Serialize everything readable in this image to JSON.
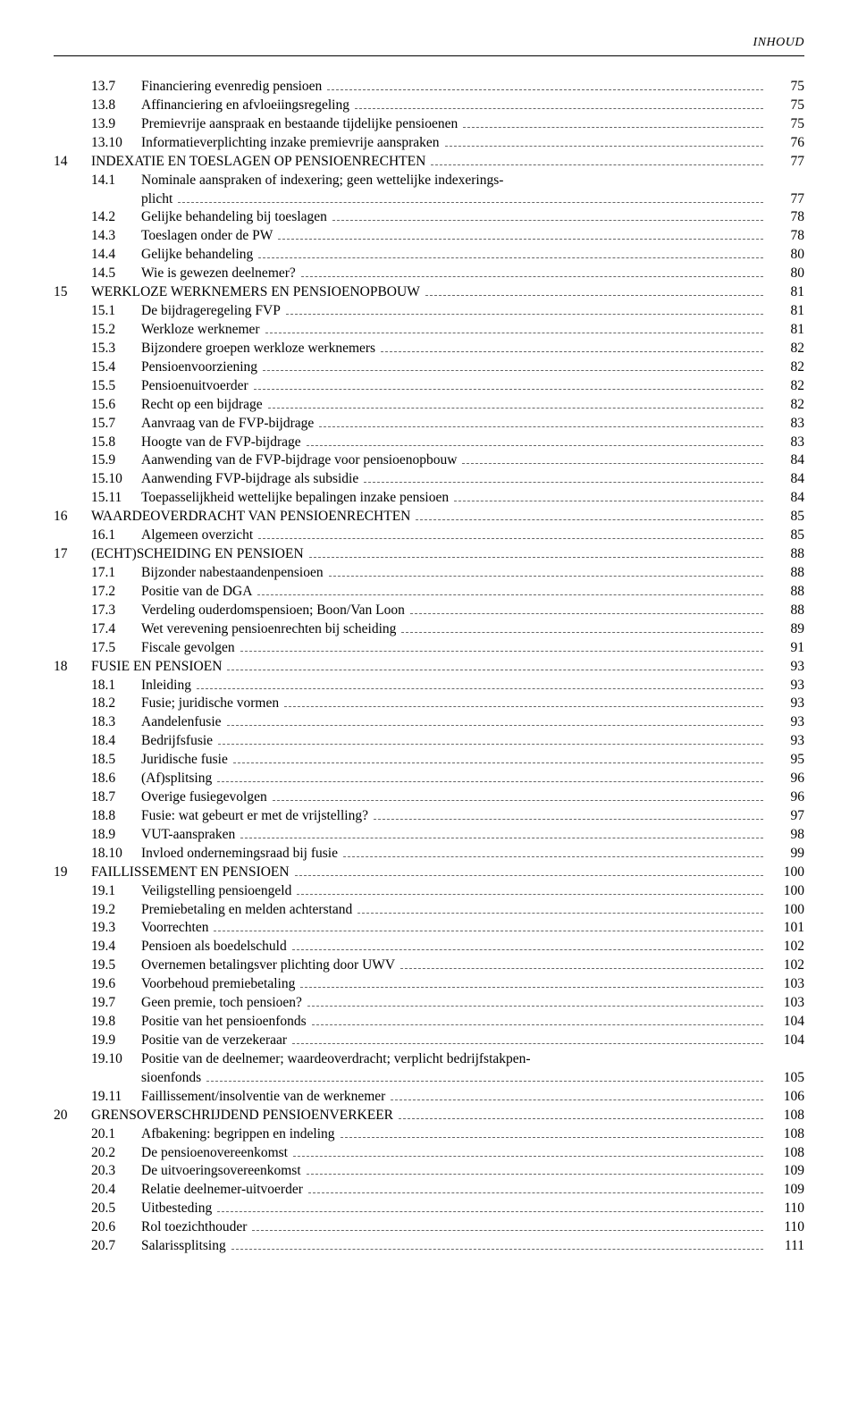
{
  "header": {
    "label": "INHOUD"
  },
  "toc": [
    {
      "type": "section",
      "chap": "",
      "sec": "13.7",
      "title": "Financiering evenredig pensioen",
      "page": "75"
    },
    {
      "type": "section",
      "chap": "",
      "sec": "13.8",
      "title": "Affinanciering en afvloeiingsregeling",
      "page": "75"
    },
    {
      "type": "section",
      "chap": "",
      "sec": "13.9",
      "title": "Premievrije aanspraak en bestaande tijdelijke pensioenen",
      "page": "75"
    },
    {
      "type": "section",
      "chap": "",
      "sec": "13.10",
      "title": "Informatieverplichting inzake premievrije aanspraken",
      "page": "76"
    },
    {
      "type": "chapter",
      "chap": "14",
      "sec": "",
      "title": "INDEXATIE EN TOESLAGEN OP PENSIOENRECHTEN",
      "page": "77"
    },
    {
      "type": "section-wrap",
      "chap": "",
      "sec": "14.1",
      "title": "Nominale aanspraken of indexering; geen wettelijke indexerings-",
      "cont": "plicht",
      "page": "77"
    },
    {
      "type": "section",
      "chap": "",
      "sec": "14.2",
      "title": "Gelijke behandeling bij toeslagen",
      "page": "78"
    },
    {
      "type": "section",
      "chap": "",
      "sec": "14.3",
      "title": "Toeslagen onder de PW",
      "page": "78"
    },
    {
      "type": "section",
      "chap": "",
      "sec": "14.4",
      "title": "Gelijke behandeling",
      "page": "80"
    },
    {
      "type": "section",
      "chap": "",
      "sec": "14.5",
      "title": "Wie is gewezen deelnemer?",
      "page": "80"
    },
    {
      "type": "chapter",
      "chap": "15",
      "sec": "",
      "title": "WERKLOZE WERKNEMERS EN PENSIOENOPBOUW",
      "page": "81"
    },
    {
      "type": "section",
      "chap": "",
      "sec": "15.1",
      "title": "De bijdrageregeling FVP",
      "page": "81"
    },
    {
      "type": "section",
      "chap": "",
      "sec": "15.2",
      "title": "Werkloze werknemer",
      "page": "81"
    },
    {
      "type": "section",
      "chap": "",
      "sec": "15.3",
      "title": "Bijzondere groepen werkloze werknemers",
      "page": "82"
    },
    {
      "type": "section",
      "chap": "",
      "sec": "15.4",
      "title": "Pensioenvoorziening",
      "page": "82"
    },
    {
      "type": "section",
      "chap": "",
      "sec": "15.5",
      "title": "Pensioenuitvoerder",
      "page": "82"
    },
    {
      "type": "section",
      "chap": "",
      "sec": "15.6",
      "title": "Recht op een bijdrage",
      "page": "82"
    },
    {
      "type": "section",
      "chap": "",
      "sec": "15.7",
      "title": "Aanvraag van de FVP-bijdrage",
      "page": "83"
    },
    {
      "type": "section",
      "chap": "",
      "sec": "15.8",
      "title": "Hoogte van de FVP-bijdrage",
      "page": "83"
    },
    {
      "type": "section",
      "chap": "",
      "sec": "15.9",
      "title": "Aanwending van de FVP-bijdrage voor pensioenopbouw",
      "page": "84"
    },
    {
      "type": "section",
      "chap": "",
      "sec": "15.10",
      "title": "Aanwending FVP-bijdrage als subsidie",
      "page": "84"
    },
    {
      "type": "section",
      "chap": "",
      "sec": "15.11",
      "title": "Toepasselijkheid wettelijke bepalingen inzake pensioen",
      "page": "84"
    },
    {
      "type": "chapter",
      "chap": "16",
      "sec": "",
      "title": "WAARDEOVERDRACHT VAN PENSIOENRECHTEN",
      "page": "85"
    },
    {
      "type": "section",
      "chap": "",
      "sec": "16.1",
      "title": "Algemeen overzicht",
      "page": "85"
    },
    {
      "type": "chapter",
      "chap": "17",
      "sec": "",
      "title": "(ECHT)SCHEIDING EN PENSIOEN",
      "page": "88"
    },
    {
      "type": "section",
      "chap": "",
      "sec": "17.1",
      "title": "Bijzonder nabestaandenpensioen",
      "page": "88"
    },
    {
      "type": "section",
      "chap": "",
      "sec": "17.2",
      "title": "Positie van de DGA",
      "page": "88"
    },
    {
      "type": "section",
      "chap": "",
      "sec": "17.3",
      "title": "Verdeling ouderdomspensioen; Boon/Van Loon",
      "page": "88"
    },
    {
      "type": "section",
      "chap": "",
      "sec": "17.4",
      "title": "Wet verevening pensioenrechten bij scheiding",
      "page": "89"
    },
    {
      "type": "section",
      "chap": "",
      "sec": "17.5",
      "title": "Fiscale gevolgen",
      "page": "91"
    },
    {
      "type": "chapter",
      "chap": "18",
      "sec": "",
      "title": "FUSIE EN PENSIOEN",
      "page": "93"
    },
    {
      "type": "section",
      "chap": "",
      "sec": "18.1",
      "title": "Inleiding",
      "page": "93"
    },
    {
      "type": "section",
      "chap": "",
      "sec": "18.2",
      "title": "Fusie; juridische vormen",
      "page": "93"
    },
    {
      "type": "section",
      "chap": "",
      "sec": "18.3",
      "title": "Aandelenfusie",
      "page": "93"
    },
    {
      "type": "section",
      "chap": "",
      "sec": "18.4",
      "title": "Bedrijfsfusie",
      "page": "93"
    },
    {
      "type": "section",
      "chap": "",
      "sec": "18.5",
      "title": "Juridische fusie",
      "page": "95"
    },
    {
      "type": "section",
      "chap": "",
      "sec": "18.6",
      "title": "(Af)splitsing",
      "page": "96"
    },
    {
      "type": "section",
      "chap": "",
      "sec": "18.7",
      "title": "Overige fusiegevolgen",
      "page": "96"
    },
    {
      "type": "section",
      "chap": "",
      "sec": "18.8",
      "title": "Fusie: wat gebeurt er met de vrijstelling?",
      "page": "97"
    },
    {
      "type": "section",
      "chap": "",
      "sec": "18.9",
      "title": "VUT-aanspraken",
      "page": "98"
    },
    {
      "type": "section",
      "chap": "",
      "sec": "18.10",
      "title": "Invloed ondernemingsraad bij fusie",
      "page": "99"
    },
    {
      "type": "chapter",
      "chap": "19",
      "sec": "",
      "title": "FAILLISSEMENT EN PENSIOEN",
      "page": "100"
    },
    {
      "type": "section",
      "chap": "",
      "sec": "19.1",
      "title": "Veiligstelling pensioengeld",
      "page": "100"
    },
    {
      "type": "section",
      "chap": "",
      "sec": "19.2",
      "title": "Premiebetaling en melden achterstand",
      "page": "100"
    },
    {
      "type": "section",
      "chap": "",
      "sec": "19.3",
      "title": "Voorrechten",
      "page": "101"
    },
    {
      "type": "section",
      "chap": "",
      "sec": "19.4",
      "title": "Pensioen als boedelschuld",
      "page": "102"
    },
    {
      "type": "section",
      "chap": "",
      "sec": "19.5",
      "title": "Overnemen betalingsver plichting door UWV",
      "page": "102"
    },
    {
      "type": "section",
      "chap": "",
      "sec": "19.6",
      "title": "Voorbehoud premiebetaling",
      "page": "103"
    },
    {
      "type": "section",
      "chap": "",
      "sec": "19.7",
      "title": "Geen premie, toch pensioen?",
      "page": "103"
    },
    {
      "type": "section",
      "chap": "",
      "sec": "19.8",
      "title": "Positie van het pensioenfonds",
      "page": "104"
    },
    {
      "type": "section",
      "chap": "",
      "sec": "19.9",
      "title": "Positie van de verzekeraar",
      "page": "104"
    },
    {
      "type": "section-wrap",
      "chap": "",
      "sec": "19.10",
      "title": "Positie van de deelnemer; waardeoverdracht; verplicht bedrijfstakpen-",
      "cont": "sioenfonds",
      "page": "105"
    },
    {
      "type": "section",
      "chap": "",
      "sec": "19.11",
      "title": "Faillissement/insolventie van de werknemer",
      "page": "106"
    },
    {
      "type": "chapter",
      "chap": "20",
      "sec": "",
      "title": "GRENSOVERSCHRIJDEND PENSIOENVERKEER",
      "page": "108"
    },
    {
      "type": "section",
      "chap": "",
      "sec": "20.1",
      "title": "Afbakening: begrippen en indeling",
      "page": "108"
    },
    {
      "type": "section",
      "chap": "",
      "sec": "20.2",
      "title": "De pensioenovereenkomst",
      "page": "108"
    },
    {
      "type": "section",
      "chap": "",
      "sec": "20.3",
      "title": "De uitvoeringsovereenkomst",
      "page": "109"
    },
    {
      "type": "section",
      "chap": "",
      "sec": "20.4",
      "title": "Relatie deelnemer-uitvoerder",
      "page": "109"
    },
    {
      "type": "section",
      "chap": "",
      "sec": "20.5",
      "title": "Uitbesteding",
      "page": "110"
    },
    {
      "type": "section",
      "chap": "",
      "sec": "20.6",
      "title": "Rol toezichthouder",
      "page": "110"
    },
    {
      "type": "section",
      "chap": "",
      "sec": "20.7",
      "title": "Salarissplitsing",
      "page": "111"
    }
  ]
}
